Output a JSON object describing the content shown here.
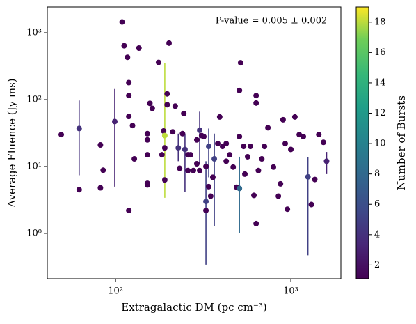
{
  "chart_data": {
    "type": "scatter",
    "annotation": "P-value = 0.005 ± 0.002",
    "x_label": "Extragalactic DM (pc cm⁻³)",
    "y_label": "Average Fluence (Jy ms)",
    "colorbar_label": "Number of Bursts",
    "colormap": "viridis",
    "xscale": "log",
    "yscale": "log",
    "xlim": [
      40.8,
      1930
    ],
    "ylim": [
      0.21,
      2430
    ],
    "xticks": [
      {
        "value": 100,
        "label": "10²"
      },
      {
        "value": 1000,
        "label": "10³"
      }
    ],
    "yticks": [
      {
        "value": 1,
        "label": "10⁰"
      },
      {
        "value": 10,
        "label": "10¹"
      },
      {
        "value": 100,
        "label": "10²"
      },
      {
        "value": 1000,
        "label": "10³"
      }
    ],
    "clim": [
      1.1,
      19
    ],
    "cticks": [
      2,
      4,
      6,
      8,
      10,
      12,
      14,
      16,
      18
    ],
    "x": [
      49,
      62,
      62,
      82,
      82,
      85,
      99,
      109,
      112,
      117,
      119,
      119,
      119,
      119,
      125,
      128,
      136,
      152,
      157,
      162,
      152,
      152,
      152,
      152,
      176,
      184,
      188,
      191,
      191,
      191,
      197,
      202,
      197,
      212,
      219,
      228,
      232,
      241,
      245,
      249,
      259,
      259,
      268,
      278,
      291,
      291,
      302,
      302,
      310,
      319,
      328,
      328,
      328,
      340,
      349,
      359,
      366,
      340,
      383,
      393,
      408,
      428,
      428,
      448,
      469,
      490,
      509,
      517,
      509,
      509,
      538,
      547,
      567,
      588,
      616,
      634,
      634,
      634,
      653,
      683,
      707,
      740,
      796,
      849,
      873,
      903,
      929,
      956,
      1000,
      1055,
      1117,
      1179,
      1252,
      1310,
      1370,
      1444,
      1535,
      1600
    ],
    "values": [
      30,
      37,
      4.5,
      21,
      4.8,
      8.8,
      47,
      1450,
      640,
      430,
      180,
      115,
      2.2,
      56,
      41,
      13,
      590,
      31,
      88,
      74,
      25,
      15,
      5.3,
      5.6,
      360,
      15,
      34,
      29,
      19,
      6.3,
      122,
      700,
      84,
      33,
      80,
      19,
      9.4,
      31,
      62,
      18,
      15,
      8.7,
      15,
      8.7,
      25,
      11,
      35,
      8.7,
      29,
      28,
      10,
      3.0,
      2.2,
      20,
      3.6,
      6.9,
      13,
      5,
      22,
      55,
      20,
      22,
      12,
      15,
      9.8,
      4.9,
      4.7,
      355,
      137,
      28,
      20,
      7.7,
      14,
      20,
      3.7,
      115,
      89,
      1.4,
      8.7,
      13,
      20,
      38,
      9.8,
      3.6,
      5.5,
      50,
      22,
      2.3,
      18,
      55,
      30,
      28,
      7,
      2.7,
      6.4,
      30,
      23,
      12
    ],
    "bursts": [
      1,
      4,
      1,
      1,
      1,
      1,
      3,
      1,
      1,
      1,
      1,
      1,
      1,
      1,
      1,
      1,
      1,
      1,
      1,
      1,
      1,
      1,
      1,
      1,
      1,
      1,
      1,
      18,
      1,
      1,
      1,
      1,
      1,
      1,
      1,
      4,
      1,
      1,
      1,
      4,
      1,
      1,
      1,
      1,
      1,
      1,
      4,
      1,
      1,
      1,
      1,
      5,
      1,
      5,
      1,
      1,
      5,
      1,
      1,
      1,
      1,
      1,
      1,
      1,
      1,
      1,
      8,
      1,
      1,
      1,
      1,
      1,
      1,
      1,
      1,
      1,
      1,
      1,
      1,
      1,
      1,
      1,
      1,
      1,
      1,
      1,
      1,
      1,
      1,
      1,
      1,
      1,
      5,
      1,
      1,
      1,
      1,
      3
    ],
    "err_low": [
      null,
      7.4,
      null,
      null,
      null,
      null,
      5,
      null,
      null,
      null,
      null,
      null,
      null,
      null,
      null,
      null,
      null,
      null,
      null,
      null,
      null,
      null,
      null,
      null,
      null,
      null,
      null,
      3.4,
      null,
      null,
      null,
      null,
      null,
      null,
      null,
      12,
      null,
      null,
      null,
      4.2,
      null,
      null,
      null,
      null,
      null,
      null,
      11,
      null,
      null,
      null,
      null,
      0.34,
      null,
      6.9,
      null,
      null,
      1.3,
      null,
      null,
      null,
      null,
      null,
      null,
      null,
      null,
      null,
      1.0,
      null,
      null,
      null,
      null,
      null,
      null,
      null,
      null,
      null,
      null,
      null,
      null,
      null,
      null,
      null,
      null,
      null,
      null,
      null,
      null,
      null,
      null,
      null,
      null,
      null,
      0.47,
      null,
      null,
      null,
      null,
      7.7
    ],
    "err_high": [
      null,
      97,
      null,
      null,
      null,
      null,
      144,
      null,
      null,
      null,
      null,
      null,
      null,
      null,
      null,
      null,
      null,
      null,
      null,
      null,
      null,
      null,
      null,
      null,
      null,
      null,
      null,
      357,
      null,
      null,
      null,
      null,
      null,
      null,
      null,
      31,
      null,
      null,
      null,
      31,
      null,
      null,
      null,
      null,
      null,
      null,
      66,
      null,
      null,
      null,
      null,
      12,
      null,
      37,
      null,
      null,
      31,
      null,
      null,
      null,
      null,
      null,
      null,
      null,
      null,
      null,
      14,
      null,
      null,
      null,
      null,
      null,
      null,
      null,
      null,
      null,
      null,
      null,
      null,
      null,
      null,
      null,
      null,
      null,
      null,
      null,
      null,
      null,
      null,
      null,
      null,
      null,
      14,
      null,
      null,
      null,
      null,
      16.5
    ]
  }
}
